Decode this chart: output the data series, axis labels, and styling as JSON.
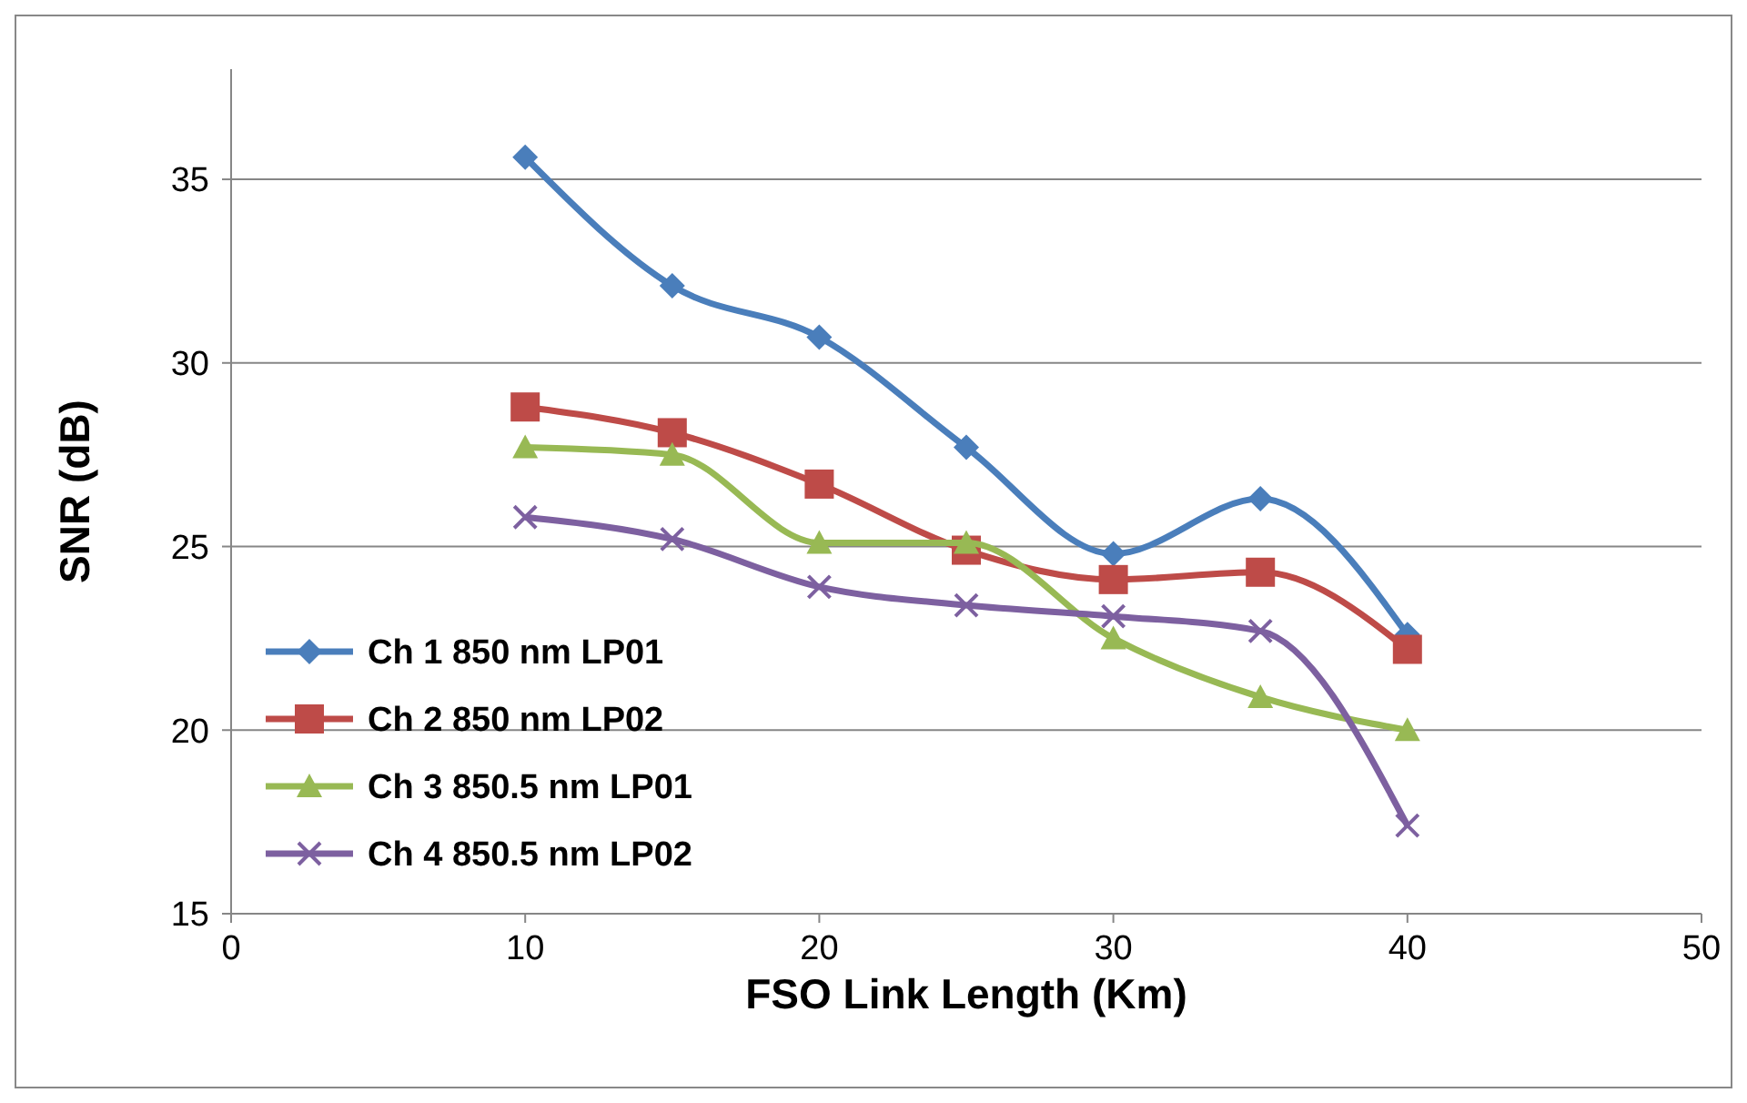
{
  "chart_data": {
    "type": "line",
    "xlabel": "FSO Link Length (Km)",
    "ylabel": "SNR (dB)",
    "x": [
      10,
      15,
      20,
      25,
      30,
      35,
      40
    ],
    "xlim": [
      0,
      50
    ],
    "xticks": [
      0,
      10,
      20,
      30,
      40,
      50
    ],
    "ylim": [
      15,
      38
    ],
    "yticks": [
      15,
      20,
      25,
      30,
      35
    ],
    "grid": "y",
    "legend": "left",
    "line_style": "solid",
    "series": [
      {
        "name": "Ch 1 850 nm LP01",
        "color": "#4a7ebb",
        "marker": "diamond",
        "values": [
          35.6,
          32.1,
          30.7,
          27.7,
          24.8,
          26.3,
          22.6
        ]
      },
      {
        "name": "Ch 2 850 nm LP02",
        "color": "#be4b48",
        "marker": "square",
        "values": [
          28.8,
          28.1,
          26.7,
          24.9,
          24.1,
          24.3,
          22.2
        ]
      },
      {
        "name": "Ch 3 850.5 nm LP01",
        "color": "#98b954",
        "marker": "triangle",
        "values": [
          27.7,
          27.5,
          25.1,
          25.1,
          22.5,
          20.9,
          20.0
        ]
      },
      {
        "name": "Ch 4 850.5 nm LP02",
        "color": "#7d60a0",
        "marker": "cross",
        "values": [
          25.8,
          25.2,
          23.9,
          23.4,
          23.1,
          22.7,
          17.4
        ]
      }
    ]
  }
}
